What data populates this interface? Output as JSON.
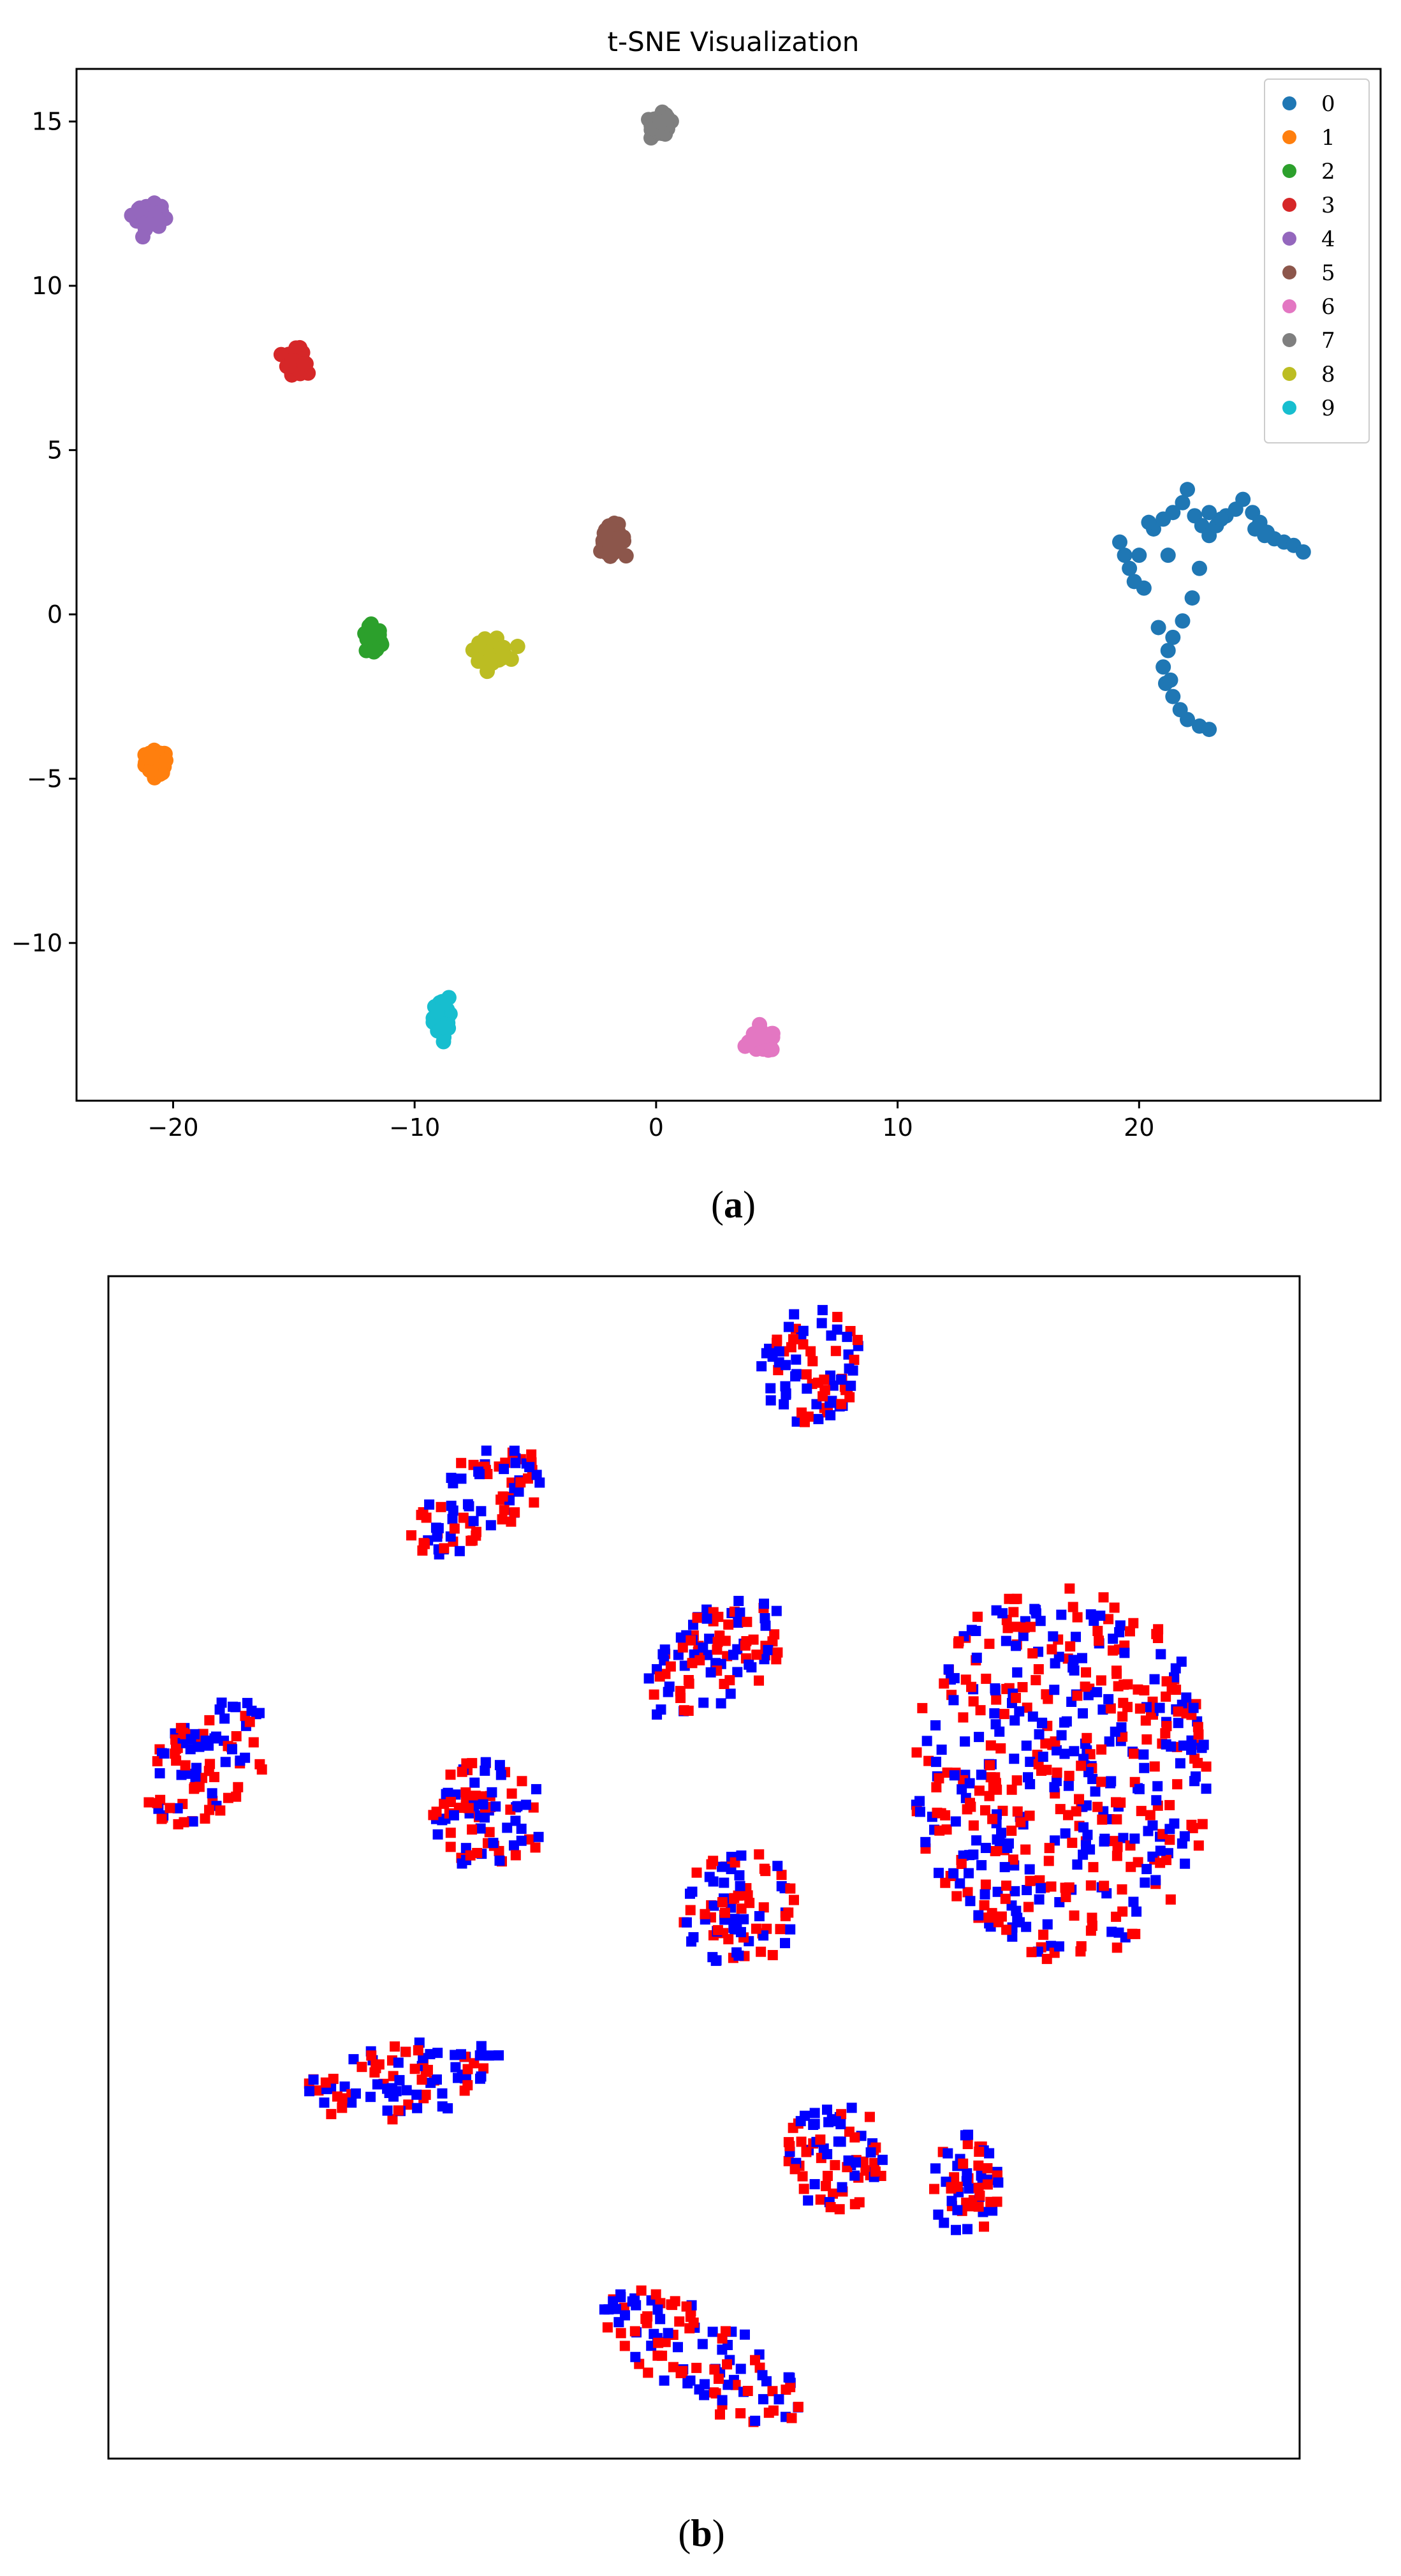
{
  "chart_data": [
    {
      "type": "scatter",
      "panel_label_paren_open": "(",
      "panel_label": "a",
      "panel_label_paren_close": ")",
      "title": "t-SNE Visualization",
      "xlabel": "",
      "ylabel": "",
      "xlim": [
        -24,
        30
      ],
      "ylim": [
        -14.8,
        16.6
      ],
      "x_ticks": [
        -20,
        -10,
        0,
        10,
        20
      ],
      "x_tick_labels": [
        "−20",
        "−10",
        "0",
        "10",
        "20"
      ],
      "y_ticks": [
        -10,
        -5,
        0,
        5,
        10,
        15
      ],
      "y_tick_labels": [
        "−10",
        "−5",
        "0",
        "5",
        "10",
        "15"
      ],
      "grid": false,
      "legend_position": "top-right",
      "series": [
        {
          "name": "0",
          "color": "#1f77b4",
          "cluster": "arc",
          "points": [
            [
              19.2,
              2.2
            ],
            [
              19.4,
              1.8
            ],
            [
              19.6,
              1.4
            ],
            [
              19.8,
              1.0
            ],
            [
              20.2,
              0.8
            ],
            [
              20.6,
              2.6
            ],
            [
              21.0,
              2.9
            ],
            [
              21.4,
              3.1
            ],
            [
              21.8,
              3.4
            ],
            [
              22.0,
              3.8
            ],
            [
              22.3,
              3.0
            ],
            [
              22.6,
              2.7
            ],
            [
              22.9,
              2.4
            ],
            [
              23.2,
              2.7
            ],
            [
              23.6,
              3.0
            ],
            [
              24.0,
              3.2
            ],
            [
              24.3,
              3.5
            ],
            [
              24.7,
              3.1
            ],
            [
              25.0,
              2.8
            ],
            [
              25.3,
              2.5
            ],
            [
              25.6,
              2.3
            ],
            [
              26.0,
              2.2
            ],
            [
              26.4,
              2.1
            ],
            [
              26.8,
              1.9
            ],
            [
              22.5,
              1.4
            ],
            [
              22.2,
              0.5
            ],
            [
              21.8,
              -0.2
            ],
            [
              21.4,
              -0.7
            ],
            [
              21.2,
              -1.1
            ],
            [
              21.0,
              -1.6
            ],
            [
              21.1,
              -2.1
            ],
            [
              21.4,
              -2.5
            ],
            [
              21.7,
              -2.9
            ],
            [
              22.0,
              -3.2
            ],
            [
              22.5,
              -3.4
            ],
            [
              22.9,
              -3.5
            ],
            [
              20.4,
              2.8
            ],
            [
              21.2,
              1.8
            ],
            [
              24.8,
              2.6
            ],
            [
              25.2,
              2.4
            ],
            [
              23.4,
              2.9
            ],
            [
              20.0,
              1.8
            ],
            [
              22.9,
              3.1
            ],
            [
              20.8,
              -0.4
            ],
            [
              21.3,
              -2.0
            ]
          ]
        },
        {
          "name": "1",
          "color": "#ff7f0e",
          "center": [
            -20.7,
            -4.5
          ],
          "spread": [
            0.5,
            0.4
          ]
        },
        {
          "name": "2",
          "color": "#2ca02c",
          "center": [
            -11.7,
            -0.8
          ],
          "spread": [
            0.35,
            0.45
          ]
        },
        {
          "name": "3",
          "color": "#d62728",
          "center": [
            -14.9,
            7.7
          ],
          "spread": [
            0.4,
            0.4
          ]
        },
        {
          "name": "4",
          "color": "#9467bd",
          "center": [
            -21.0,
            12.1
          ],
          "spread": [
            0.55,
            0.4
          ]
        },
        {
          "name": "5",
          "color": "#8c564b",
          "center": [
            -1.8,
            2.3
          ],
          "spread": [
            0.55,
            0.45
          ]
        },
        {
          "name": "6",
          "color": "#e377c2",
          "center": [
            4.4,
            -13.0
          ],
          "spread": [
            0.6,
            0.35
          ]
        },
        {
          "name": "7",
          "color": "#7f7f7f",
          "center": [
            0.2,
            14.9
          ],
          "spread": [
            0.4,
            0.35
          ]
        },
        {
          "name": "8",
          "color": "#bcbd22",
          "center": [
            -6.8,
            -1.1
          ],
          "spread": [
            0.75,
            0.35
          ]
        },
        {
          "name": "9",
          "color": "#17becf",
          "center": [
            -8.9,
            -12.3
          ],
          "spread": [
            0.35,
            0.7
          ]
        }
      ]
    },
    {
      "type": "scatter",
      "panel_label_paren_open": "(",
      "panel_label": "b",
      "panel_label_paren_close": ")",
      "title": "",
      "xlabel": "",
      "ylabel": "",
      "axes_ticks": false,
      "xlim": [
        0,
        100
      ],
      "ylim": [
        0,
        100
      ],
      "colors": [
        "#0000ff",
        "#ff0000"
      ],
      "clusters": [
        {
          "center": [
            59,
            92.5
          ],
          "spread": [
            4.2,
            5.0
          ],
          "tilt": -15
        },
        {
          "center": [
            31,
            81.0
          ],
          "spread": [
            6.5,
            3.5
          ],
          "tilt": 35
        },
        {
          "center": [
            51,
            67.5
          ],
          "spread": [
            7.0,
            4.0
          ],
          "tilt": 40
        },
        {
          "center": [
            8.5,
            59.0
          ],
          "spread": [
            6.5,
            4.0
          ],
          "tilt": 45
        },
        {
          "center": [
            80,
            58.0
          ],
          "spread": [
            12.5,
            16.0
          ],
          "tilt": 0
        },
        {
          "center": [
            32,
            54.5
          ],
          "spread": [
            4.8,
            4.8
          ],
          "tilt": 0
        },
        {
          "center": [
            53,
            46.5
          ],
          "spread": [
            5.0,
            4.8
          ],
          "tilt": 30
        },
        {
          "center": [
            25,
            32.0
          ],
          "spread": [
            8.5,
            3.2
          ],
          "tilt": 8
        },
        {
          "center": [
            61,
            25.5
          ],
          "spread": [
            4.5,
            4.5
          ],
          "tilt": 0
        },
        {
          "center": [
            72,
            23.0
          ],
          "spread": [
            2.8,
            4.5
          ],
          "tilt": 0
        },
        {
          "center": [
            50,
            8.5
          ],
          "spread": [
            9.5,
            3.8
          ],
          "tilt": -30
        }
      ]
    }
  ]
}
